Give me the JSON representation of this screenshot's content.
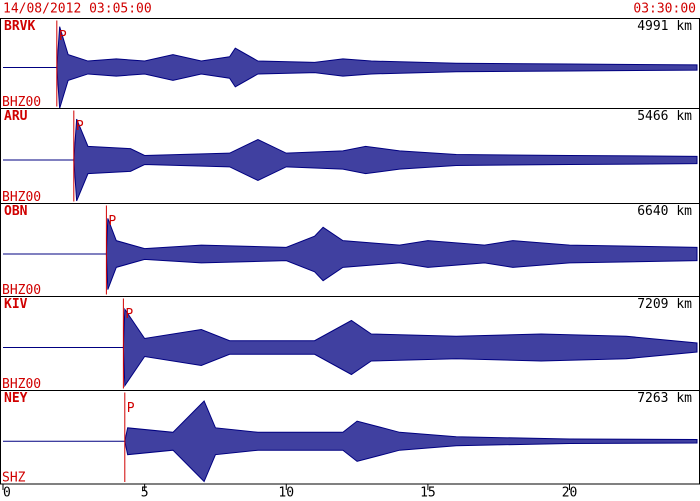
{
  "chart_data": {
    "type": "seismogram",
    "header_left": "14/08/2012 03:05:00",
    "header_right": "03:30:00",
    "xlim": [
      0,
      24.5
    ],
    "xticks": [
      0,
      5,
      10,
      15,
      20
    ],
    "trace_color": "#000080",
    "marker_color": "#d00000",
    "panels": [
      {
        "station": "BRVK",
        "distance": "4991 km",
        "channel": "BHZ00",
        "phase": "P",
        "p_arrival": 1.9,
        "x": [
          1.9,
          2.0,
          2.3,
          3,
          4,
          5,
          6,
          7,
          8,
          8.2,
          9,
          11,
          12,
          13,
          16,
          20,
          24.5
        ],
        "envelope": [
          0,
          0.95,
          0.3,
          0.15,
          0.2,
          0.15,
          0.3,
          0.15,
          0.25,
          0.45,
          0.15,
          0.12,
          0.2,
          0.15,
          0.1,
          0.08,
          0.06
        ]
      },
      {
        "station": "ARU",
        "distance": "5466 km",
        "channel": "BHZ00",
        "phase": "P",
        "p_arrival": 2.5,
        "x": [
          2.5,
          2.6,
          3,
          4.5,
          5,
          8,
          9,
          10,
          12,
          12.8,
          14,
          16,
          20,
          24.5
        ],
        "envelope": [
          0,
          0.9,
          0.3,
          0.25,
          0.1,
          0.15,
          0.45,
          0.15,
          0.2,
          0.3,
          0.2,
          0.12,
          0.1,
          0.08
        ]
      },
      {
        "station": "OBN",
        "distance": "6640 km",
        "channel": "BHZ00",
        "phase": "P",
        "p_arrival": 3.65,
        "x": [
          3.65,
          3.7,
          4,
          5,
          7,
          10,
          11,
          11.3,
          12,
          14,
          15,
          17,
          18,
          20,
          24.5
        ],
        "envelope": [
          0,
          0.8,
          0.3,
          0.12,
          0.2,
          0.15,
          0.4,
          0.6,
          0.3,
          0.2,
          0.3,
          0.2,
          0.3,
          0.2,
          0.15
        ]
      },
      {
        "station": "KIV",
        "distance": "7209 km",
        "channel": "BHZ00",
        "phase": "P",
        "p_arrival": 4.25,
        "x": [
          4.25,
          4.3,
          5,
          7,
          8,
          11,
          12.3,
          13,
          16,
          19,
          22,
          24.5
        ],
        "envelope": [
          0,
          0.85,
          0.2,
          0.4,
          0.15,
          0.15,
          0.6,
          0.3,
          0.25,
          0.3,
          0.25,
          0.1
        ]
      },
      {
        "station": "NEY",
        "distance": "7263 km",
        "channel": "SHZ",
        "phase": "P",
        "p_arrival": 4.3,
        "x": [
          4.3,
          4.4,
          6,
          7.1,
          7.5,
          9,
          12,
          12.5,
          14,
          16,
          20,
          24.5
        ],
        "envelope": [
          0,
          0.3,
          0.2,
          0.9,
          0.3,
          0.2,
          0.2,
          0.45,
          0.2,
          0.1,
          0.05,
          0.04
        ]
      }
    ]
  }
}
